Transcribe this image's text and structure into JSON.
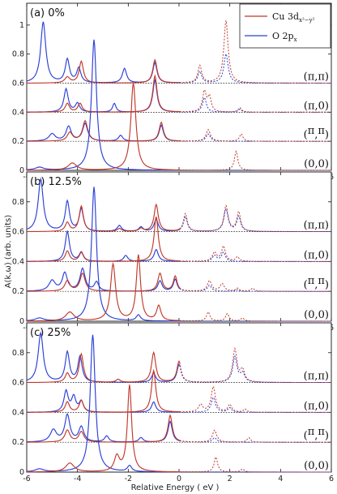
{
  "figure": {
    "xlabel": "Relative Energy ( eV )",
    "ylabel": "A(k,ω) (arb. units)",
    "legend": [
      {
        "label": "Cu 3d",
        "sub": "x²−y²",
        "color": "#c0392b"
      },
      {
        "label": "O 2p",
        "sub": "x",
        "color": "#2a3fd6"
      }
    ]
  },
  "chart_data": [
    {
      "type": "line",
      "title": "(a) 0%",
      "xlim": [
        -6,
        6
      ],
      "ylim": [
        0,
        1.15
      ],
      "xticks": [
        -6,
        -4,
        -2,
        0,
        2,
        4,
        6
      ],
      "yticks": [
        0,
        0.2,
        0.4,
        0.6,
        0.8,
        1
      ],
      "ytick_labels": [
        "0",
        "0.2",
        "0.4",
        "0.6",
        "0.8",
        "1"
      ],
      "momenta": [
        {
          "label": "(π,π)",
          "offset": 0.6,
          "cu": [
            [
              -4.4,
              0.04,
              0.12
            ],
            [
              -3.85,
              0.15,
              0.1
            ],
            [
              -0.95,
              0.16,
              0.1
            ],
            [
              0.82,
              0.12,
              0.09
            ],
            [
              1.85,
              0.43,
              0.1
            ]
          ],
          "o": [
            [
              -5.35,
              0.42,
              0.12
            ],
            [
              -4.4,
              0.16,
              0.1
            ],
            [
              -3.95,
              0.1,
              0.1
            ],
            [
              -2.15,
              0.1,
              0.1
            ],
            [
              -0.95,
              0.14,
              0.1
            ],
            [
              0.82,
              0.08,
              0.09
            ],
            [
              1.85,
              0.2,
              0.1
            ]
          ]
        },
        {
          "label": "(π,0)",
          "offset": 0.4,
          "cu": [
            [
              -4.4,
              0.06,
              0.1
            ],
            [
              -3.9,
              0.06,
              0.1
            ],
            [
              -0.95,
              0.25,
              0.1
            ],
            [
              1.0,
              0.14,
              0.09
            ],
            [
              1.2,
              0.1,
              0.08
            ],
            [
              2.4,
              0.03,
              0.08
            ]
          ],
          "o": [
            [
              -4.45,
              0.16,
              0.1
            ],
            [
              -4.0,
              0.06,
              0.1
            ],
            [
              -2.55,
              0.06,
              0.08
            ],
            [
              -0.95,
              0.22,
              0.1
            ],
            [
              1.0,
              0.1,
              0.09
            ],
            [
              2.4,
              0.02,
              0.08
            ]
          ]
        },
        {
          "label": "(π/2,π/2)",
          "offset": 0.2,
          "cu": [
            [
              -4.3,
              0.06,
              0.12
            ],
            [
              -3.7,
              0.14,
              0.12
            ],
            [
              -0.7,
              0.13,
              0.1
            ],
            [
              1.15,
              0.08,
              0.1
            ],
            [
              2.45,
              0.05,
              0.08
            ]
          ],
          "o": [
            [
              -5.0,
              0.05,
              0.15
            ],
            [
              -4.35,
              0.1,
              0.12
            ],
            [
              -3.7,
              0.12,
              0.12
            ],
            [
              -2.3,
              0.04,
              0.1
            ],
            [
              -0.7,
              0.11,
              0.1
            ],
            [
              1.15,
              0.05,
              0.1
            ]
          ]
        },
        {
          "label": "(0,0)",
          "offset": 0.0,
          "cu": [
            [
              -4.2,
              0.05,
              0.2
            ],
            [
              -1.8,
              0.6,
              0.12
            ],
            [
              2.25,
              0.13,
              0.08
            ]
          ],
          "o": [
            [
              -5.5,
              0.02,
              0.2
            ],
            [
              -3.35,
              0.9,
              0.12
            ]
          ]
        }
      ]
    },
    {
      "type": "line",
      "title": "(b) 12.5%",
      "xlim": [
        -6,
        6
      ],
      "ylim": [
        0,
        1.0
      ],
      "xticks": [
        -6,
        -4,
        -2,
        0,
        2,
        4,
        6
      ],
      "yticks": [
        0,
        0.2,
        0.4,
        0.6,
        0.8
      ],
      "ytick_labels": [
        "0",
        "0.2",
        "0.4",
        "0.6",
        "0.8"
      ],
      "momenta": [
        {
          "label": "(π,π)",
          "offset": 0.6,
          "cu": [
            [
              -4.4,
              0.06,
              0.1
            ],
            [
              -3.85,
              0.17,
              0.1
            ],
            [
              -2.35,
              0.02,
              0.1
            ],
            [
              -1.5,
              0.02,
              0.1
            ],
            [
              -0.9,
              0.18,
              0.1
            ],
            [
              0.25,
              0.12,
              0.09
            ],
            [
              1.85,
              0.17,
              0.1
            ],
            [
              2.35,
              0.13,
              0.09
            ]
          ],
          "o": [
            [
              -5.45,
              0.35,
              0.12
            ],
            [
              -4.4,
              0.2,
              0.1
            ],
            [
              -3.85,
              0.15,
              0.1
            ],
            [
              -2.35,
              0.04,
              0.1
            ],
            [
              -1.5,
              0.03,
              0.1
            ],
            [
              -0.9,
              0.08,
              0.1
            ],
            [
              0.25,
              0.1,
              0.09
            ],
            [
              1.85,
              0.15,
              0.1
            ],
            [
              2.35,
              0.1,
              0.09
            ]
          ]
        },
        {
          "label": "(π,0)",
          "offset": 0.4,
          "cu": [
            [
              -4.4,
              0.07,
              0.1
            ],
            [
              -3.85,
              0.06,
              0.1
            ],
            [
              -0.9,
              0.3,
              0.1
            ],
            [
              1.4,
              0.06,
              0.1
            ],
            [
              1.75,
              0.1,
              0.09
            ],
            [
              2.3,
              0.03,
              0.08
            ]
          ],
          "o": [
            [
              -4.4,
              0.2,
              0.1
            ],
            [
              -3.85,
              0.06,
              0.1
            ],
            [
              -2.1,
              0.04,
              0.1
            ],
            [
              -0.9,
              0.08,
              0.1
            ],
            [
              1.4,
              0.04,
              0.1
            ],
            [
              1.75,
              0.06,
              0.09
            ]
          ]
        },
        {
          "label": "(π/2,π/2)",
          "offset": 0.2,
          "cu": [
            [
              -4.4,
              0.07,
              0.12
            ],
            [
              -3.8,
              0.12,
              0.12
            ],
            [
              -0.75,
              0.12,
              0.1
            ],
            [
              -0.15,
              0.1,
              0.09
            ],
            [
              1.2,
              0.07,
              0.1
            ],
            [
              1.7,
              0.05,
              0.1
            ],
            [
              2.3,
              0.02,
              0.08
            ],
            [
              2.9,
              0.02,
              0.08
            ]
          ],
          "o": [
            [
              -5.0,
              0.07,
              0.15
            ],
            [
              -4.5,
              0.12,
              0.12
            ],
            [
              -3.8,
              0.15,
              0.12
            ],
            [
              -3.25,
              0.06,
              0.1
            ],
            [
              -0.75,
              0.07,
              0.1
            ],
            [
              -0.15,
              0.08,
              0.09
            ],
            [
              1.2,
              0.04,
              0.1
            ],
            [
              2.3,
              0.01,
              0.08
            ]
          ]
        },
        {
          "label": "(0,0)",
          "offset": 0.0,
          "cu": [
            [
              -4.3,
              0.06,
              0.2
            ],
            [
              -2.6,
              0.38,
              0.12
            ],
            [
              -1.6,
              0.44,
              0.1
            ],
            [
              -0.8,
              0.1,
              0.1
            ],
            [
              1.15,
              0.06,
              0.08
            ],
            [
              1.9,
              0.05,
              0.08
            ],
            [
              2.5,
              0.02,
              0.08
            ]
          ],
          "o": [
            [
              -5.5,
              0.02,
              0.2
            ],
            [
              -3.35,
              0.9,
              0.12
            ],
            [
              -1.6,
              0.04,
              0.1
            ]
          ]
        }
      ]
    },
    {
      "type": "line",
      "title": "(c) 25%",
      "xlim": [
        -6,
        6
      ],
      "ylim": [
        0,
        1.0
      ],
      "xticks": [
        -6,
        -4,
        -2,
        0,
        2,
        4,
        6
      ],
      "yticks": [
        0,
        0.2,
        0.4,
        0.6,
        0.8
      ],
      "ytick_labels": [
        "0",
        "0.2",
        "0.4",
        "0.6",
        "0.8"
      ],
      "momenta": [
        {
          "label": "(π,π)",
          "offset": 0.6,
          "cu": [
            [
              -4.4,
              0.06,
              0.1
            ],
            [
              -3.85,
              0.19,
              0.1
            ],
            [
              -2.4,
              0.02,
              0.1
            ],
            [
              -1.0,
              0.2,
              0.1
            ],
            [
              0.0,
              0.14,
              0.1
            ],
            [
              2.2,
              0.22,
              0.1
            ],
            [
              2.5,
              0.08,
              0.1
            ]
          ],
          "o": [
            [
              -5.45,
              0.33,
              0.12
            ],
            [
              -4.4,
              0.2,
              0.1
            ],
            [
              -3.9,
              0.17,
              0.1
            ],
            [
              -1.0,
              0.06,
              0.1
            ],
            [
              0.0,
              0.12,
              0.1
            ],
            [
              2.2,
              0.17,
              0.1
            ],
            [
              2.5,
              0.06,
              0.1
            ]
          ]
        },
        {
          "label": "(π,0)",
          "offset": 0.4,
          "cu": [
            [
              -4.4,
              0.07,
              0.1
            ],
            [
              -3.85,
              0.08,
              0.1
            ],
            [
              -1.0,
              0.28,
              0.1
            ],
            [
              0.85,
              0.05,
              0.1
            ],
            [
              1.35,
              0.17,
              0.1
            ],
            [
              2.0,
              0.05,
              0.09
            ],
            [
              2.6,
              0.02,
              0.08
            ]
          ],
          "o": [
            [
              -4.45,
              0.14,
              0.1
            ],
            [
              -4.15,
              0.1,
              0.1
            ],
            [
              -3.85,
              0.07,
              0.1
            ],
            [
              -1.0,
              0.07,
              0.1
            ],
            [
              1.35,
              0.1,
              0.1
            ],
            [
              2.0,
              0.03,
              0.09
            ]
          ]
        },
        {
          "label": "(π/2,π/2)",
          "offset": 0.2,
          "cu": [
            [
              -4.4,
              0.08,
              0.12
            ],
            [
              -3.85,
              0.07,
              0.12
            ],
            [
              -0.35,
              0.18,
              0.1
            ],
            [
              1.4,
              0.08,
              0.1
            ],
            [
              2.75,
              0.03,
              0.08
            ]
          ],
          "o": [
            [
              -4.95,
              0.08,
              0.15
            ],
            [
              -4.4,
              0.18,
              0.12
            ],
            [
              -3.85,
              0.1,
              0.12
            ],
            [
              -2.85,
              0.04,
              0.1
            ],
            [
              -1.5,
              0.03,
              0.1
            ],
            [
              -0.35,
              0.14,
              0.1
            ],
            [
              1.4,
              0.03,
              0.1
            ]
          ]
        },
        {
          "label": "(0,0)",
          "offset": 0.0,
          "cu": [
            [
              -4.3,
              0.06,
              0.2
            ],
            [
              -2.45,
              0.1,
              0.12
            ],
            [
              -1.95,
              0.58,
              0.1
            ],
            [
              1.45,
              0.1,
              0.08
            ],
            [
              2.5,
              0.02,
              0.08
            ]
          ],
          "o": [
            [
              -5.5,
              0.02,
              0.2
            ],
            [
              -3.4,
              0.92,
              0.12
            ],
            [
              -1.95,
              0.04,
              0.1
            ]
          ]
        }
      ]
    }
  ]
}
